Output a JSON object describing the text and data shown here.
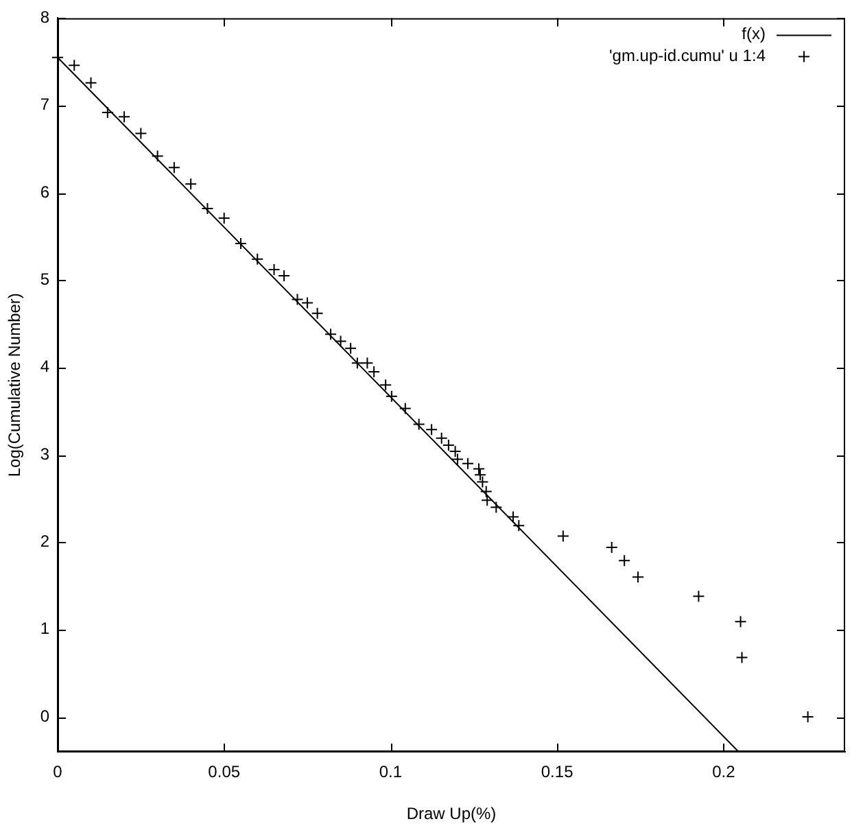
{
  "chart_data": {
    "type": "scatter",
    "xlabel": "Draw Up(%)",
    "ylabel": "Log(Cumulative Number)",
    "xlim": [
      0,
      0.2365
    ],
    "ylim": [
      -0.4,
      8
    ],
    "xticks": [
      0,
      0.05,
      0.1,
      0.15,
      0.2
    ],
    "yticks": [
      0,
      1,
      2,
      3,
      4,
      5,
      6,
      7,
      8
    ],
    "grid": false,
    "legend": "top right",
    "series": [
      {
        "name": "f(x)",
        "type": "line",
        "color": "#000000",
        "marker": "none",
        "x": [
          0,
          0.2045
        ],
        "values": [
          7.55,
          -0.4
        ]
      },
      {
        "name": "'gm.up-id.cumu' u 1:4",
        "color": "#000000",
        "marker": "cross",
        "x": [
          0,
          0.005,
          0.01,
          0.015,
          0.02,
          0.025,
          0.03,
          0.035,
          0.04,
          0.045,
          0.05,
          0.055,
          0.06,
          0.065,
          0.068,
          0.072,
          0.075,
          0.078,
          0.082,
          0.085,
          0.088,
          0.09,
          0.093,
          0.095,
          0.0985,
          0.1003,
          0.1044,
          0.1085,
          0.1123,
          0.1153,
          0.1174,
          0.1194,
          0.1201,
          0.1232,
          0.1265,
          0.1269,
          0.1276,
          0.1287,
          0.129,
          0.1317,
          0.1368,
          0.1385,
          0.1518,
          0.1664,
          0.1702,
          0.1743,
          0.1925,
          0.2051,
          0.2055,
          0.2253
        ],
        "values": [
          7.55,
          7.46,
          7.26,
          6.92,
          6.87,
          6.68,
          6.42,
          6.29,
          6.1,
          5.82,
          5.71,
          5.42,
          5.24,
          5.12,
          5.05,
          4.78,
          4.74,
          4.62,
          4.38,
          4.3,
          4.22,
          4.05,
          4.05,
          3.95,
          3.8,
          3.67,
          3.53,
          3.35,
          3.29,
          3.19,
          3.11,
          3.04,
          2.95,
          2.9,
          2.84,
          2.77,
          2.69,
          2.58,
          2.48,
          2.4,
          2.29,
          2.19,
          2.07,
          1.94,
          1.79,
          1.6,
          1.38,
          1.09,
          0.68,
          0.0
        ]
      }
    ]
  }
}
